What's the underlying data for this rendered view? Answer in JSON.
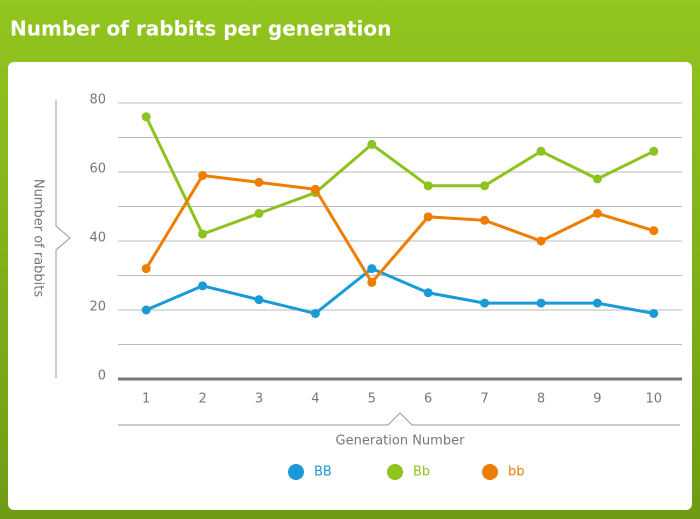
{
  "chart_data": {
    "type": "line",
    "title": "Number of rabbits per generation",
    "x_label": "Generation Number",
    "y_label": "Number of rabbits",
    "categories": [
      "1",
      "2",
      "3",
      "4",
      "5",
      "6",
      "7",
      "8",
      "9",
      "10"
    ],
    "series": [
      {
        "name": "BB",
        "color": "#1a9ad6",
        "values": [
          20,
          27,
          23,
          19,
          32,
          25,
          22,
          22,
          22,
          19
        ]
      },
      {
        "name": "Bb",
        "color": "#8dc21f",
        "values": [
          76,
          42,
          48,
          54,
          68,
          56,
          56,
          66,
          58,
          66
        ]
      },
      {
        "name": "bb",
        "color": "#ef7d00",
        "values": [
          32,
          59,
          57,
          55,
          28,
          47,
          46,
          40,
          48,
          43
        ]
      }
    ],
    "ylim": [
      0,
      80
    ],
    "yticks": [
      0,
      20,
      40,
      60,
      80
    ],
    "grid": true,
    "minor_grid": true,
    "legend": "bottom"
  }
}
